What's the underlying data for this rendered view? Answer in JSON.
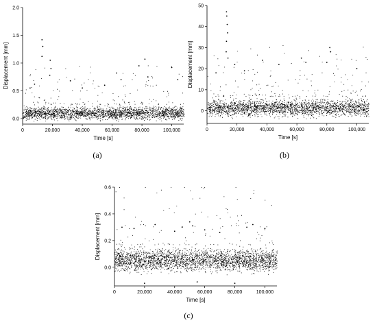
{
  "chart_data": [
    {
      "type": "scatter",
      "panel": "(a)",
      "xlabel": "Time [s]",
      "ylabel": "Displacement [mm]",
      "xlim": [
        0,
        108000
      ],
      "ylim": [
        -0.1,
        2.0
      ],
      "xticks": [
        0,
        20000,
        40000,
        60000,
        80000,
        100000
      ],
      "xtick_labels": [
        "0",
        "20,000",
        "40,000",
        "60,000",
        "80,000",
        "100,000"
      ],
      "yticks": [
        0.0,
        0.5,
        1.0,
        1.5,
        2.0
      ],
      "ytick_labels": [
        "0.0",
        "0.5",
        "1.0",
        "1.5",
        "2.0"
      ],
      "grid": false,
      "band": {
        "low": -0.06,
        "high": 0.26
      },
      "peaks": [
        {
          "x": 13000,
          "y": 1.42
        },
        {
          "x": 13500,
          "y": 1.3
        },
        {
          "x": 13000,
          "y": 1.12
        },
        {
          "x": 18500,
          "y": 1.05
        },
        {
          "x": 19000,
          "y": 0.9
        },
        {
          "x": 18200,
          "y": 0.78
        },
        {
          "x": 5000,
          "y": 0.55
        },
        {
          "x": 8000,
          "y": 0.62
        },
        {
          "x": 32000,
          "y": 0.68
        },
        {
          "x": 40000,
          "y": 0.55
        },
        {
          "x": 55000,
          "y": 0.6
        },
        {
          "x": 63000,
          "y": 0.82
        },
        {
          "x": 66000,
          "y": 0.7
        },
        {
          "x": 78000,
          "y": 0.95
        },
        {
          "x": 82000,
          "y": 1.07
        },
        {
          "x": 84000,
          "y": 0.75
        },
        {
          "x": 100000,
          "y": 0.92
        },
        {
          "x": 104000,
          "y": 0.7
        }
      ]
    },
    {
      "type": "scatter",
      "panel": "(b)",
      "xlabel": "Time [s]",
      "ylabel": "Displacement [mm]",
      "xlim": [
        0,
        108000
      ],
      "ylim": [
        -6,
        50
      ],
      "xticks": [
        0,
        20000,
        40000,
        60000,
        80000,
        100000
      ],
      "xtick_labels": [
        "0",
        "20,000",
        "40,000",
        "60,000",
        "80,000",
        "100,000"
      ],
      "yticks": [
        0,
        10,
        20,
        30,
        40,
        50
      ],
      "ytick_labels": [
        "0",
        "10",
        "20",
        "30",
        "40",
        "50"
      ],
      "grid": false,
      "band": {
        "low": -4,
        "high": 7
      },
      "peaks": [
        {
          "x": 13000,
          "y": 47
        },
        {
          "x": 13200,
          "y": 45
        },
        {
          "x": 13500,
          "y": 41
        },
        {
          "x": 13800,
          "y": 37
        },
        {
          "x": 13000,
          "y": 33
        },
        {
          "x": 12800,
          "y": 28
        },
        {
          "x": 14000,
          "y": 25
        },
        {
          "x": 18500,
          "y": 22
        },
        {
          "x": 37000,
          "y": 24
        },
        {
          "x": 48000,
          "y": 22
        },
        {
          "x": 63000,
          "y": 25
        },
        {
          "x": 66000,
          "y": 23
        },
        {
          "x": 80000,
          "y": 23
        },
        {
          "x": 82000,
          "y": 30
        },
        {
          "x": 82500,
          "y": 28
        },
        {
          "x": 100000,
          "y": 20
        },
        {
          "x": 6000,
          "y": 18
        },
        {
          "x": 25000,
          "y": 19
        }
      ]
    },
    {
      "type": "scatter",
      "panel": "(c)",
      "xlabel": "Time [s]",
      "ylabel": "Displacement [mm]",
      "xlim": [
        0,
        108000
      ],
      "ylim": [
        -0.14,
        0.6
      ],
      "xticks": [
        0,
        20000,
        40000,
        60000,
        80000,
        100000
      ],
      "xtick_labels": [
        "0",
        "20,000",
        "40,000",
        "60,000",
        "80,000",
        "100,000"
      ],
      "yticks": [
        0.0,
        0.2,
        0.4,
        0.6
      ],
      "ytick_labels": [
        "0.0",
        "0.2",
        "0.4",
        "0.6"
      ],
      "grid": false,
      "band": {
        "low": -0.06,
        "high": 0.17
      },
      "peaks": [
        {
          "x": 5000,
          "y": 0.3
        },
        {
          "x": 13000,
          "y": 0.29
        },
        {
          "x": 27000,
          "y": 0.32
        },
        {
          "x": 40000,
          "y": 0.27
        },
        {
          "x": 45000,
          "y": 0.3
        },
        {
          "x": 50000,
          "y": 0.34
        },
        {
          "x": 52000,
          "y": 0.31
        },
        {
          "x": 60000,
          "y": 0.28
        },
        {
          "x": 70000,
          "y": 0.26
        },
        {
          "x": 88000,
          "y": 0.3
        },
        {
          "x": 92000,
          "y": 0.32
        },
        {
          "x": 100000,
          "y": 0.29
        },
        {
          "x": 20000,
          "y": -0.12
        },
        {
          "x": 55000,
          "y": -0.11
        },
        {
          "x": 80000,
          "y": -0.12
        }
      ]
    }
  ]
}
